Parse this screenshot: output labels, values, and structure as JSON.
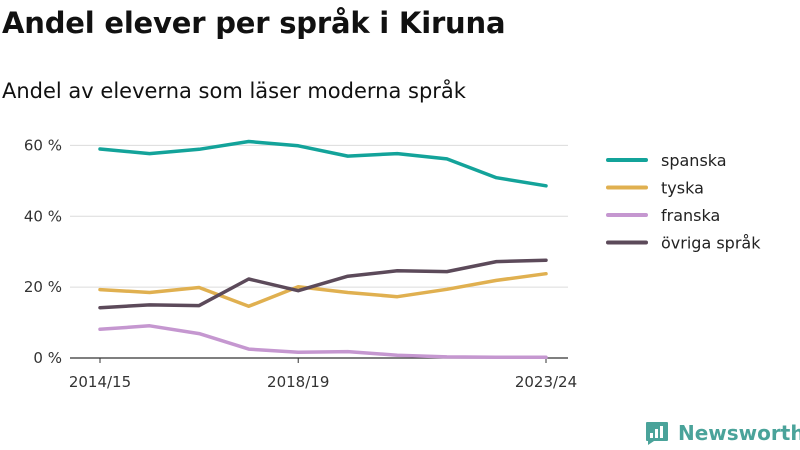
{
  "title": "Andel elever per språk i Kiruna",
  "subtitle": "Andel av eleverna som läser moderna språk",
  "brand": {
    "name": "Newsworthy",
    "icon": "newsworthy-logo-icon",
    "color": "#4aa39a"
  },
  "chart_data": {
    "type": "line",
    "x": [
      "2014/15",
      "2015/16",
      "2016/17",
      "2017/18",
      "2018/19",
      "2019/20",
      "2020/21",
      "2021/22",
      "2022/23",
      "2023/24"
    ],
    "x_tick_labels": [
      "2014/15",
      "2018/19",
      "2023/24"
    ],
    "y_ticks": [
      0,
      20,
      40,
      60
    ],
    "y_tick_labels": [
      "0 %",
      "20 %",
      "40 %",
      "60 %"
    ],
    "ylim": [
      0,
      70
    ],
    "grid": true,
    "legend_position": "right",
    "series": [
      {
        "name": "spanska",
        "color": "#13a39a",
        "values": [
          59,
          57.7,
          58.9,
          61.1,
          59.9,
          57,
          57.7,
          56.2,
          50.9,
          48.6
        ]
      },
      {
        "name": "tyska",
        "color": "#e0b050",
        "values": [
          19.3,
          18.5,
          19.9,
          14.6,
          20.1,
          18.5,
          17.3,
          19.4,
          21.9,
          23.8
        ]
      },
      {
        "name": "franska",
        "color": "#c597d0",
        "values": [
          8.1,
          9.1,
          6.9,
          2.5,
          1.6,
          1.8,
          0.8,
          0.3,
          0.2,
          0.2
        ]
      },
      {
        "name": "övriga språk",
        "color": "#5c4a5a",
        "values": [
          14.2,
          15,
          14.8,
          22.3,
          19,
          23.1,
          24.6,
          24.4,
          27.2,
          27.6
        ]
      }
    ]
  }
}
